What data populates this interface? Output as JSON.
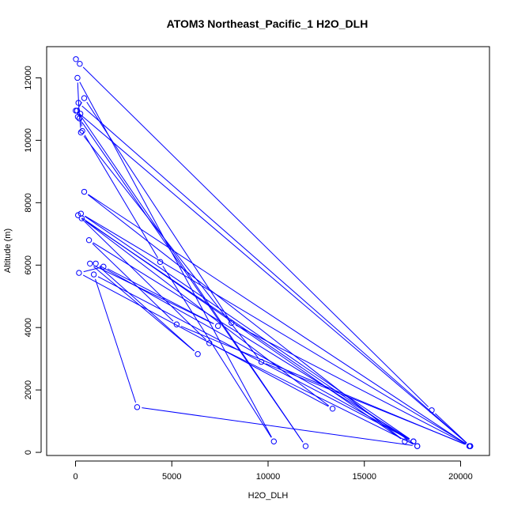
{
  "chart_data": {
    "type": "line",
    "title": "ATOM3 Northeast_Pacific_1 H2O_DLH",
    "xlabel": "H2O_DLH",
    "ylabel": "Altitude (m)",
    "xlim": [
      -1500,
      21500
    ],
    "ylim": [
      -100,
      13000
    ],
    "xticks": [
      0,
      5000,
      10000,
      15000,
      20000
    ],
    "yticks": [
      0,
      2000,
      4000,
      6000,
      8000,
      10000,
      12000
    ],
    "grid": false,
    "legend": "none",
    "series": [
      {
        "color": "#0000ff",
        "marker": "open-circle",
        "points": [
          [
            20,
            12600
          ],
          [
            220,
            12450
          ],
          [
            18500,
            1350
          ],
          [
            20500,
            200
          ],
          [
            10,
            10950
          ],
          [
            120,
            10750
          ],
          [
            250,
            10850
          ],
          [
            350,
            10300
          ],
          [
            4400,
            6100
          ],
          [
            10300,
            350
          ],
          [
            100,
            12000
          ],
          [
            200,
            10700
          ],
          [
            11950,
            200
          ],
          [
            80,
            10950
          ],
          [
            450,
            11350
          ],
          [
            8100,
            4150
          ],
          [
            20500,
            200
          ],
          [
            150,
            11200
          ],
          [
            280,
            10250
          ],
          [
            9650,
            2900
          ],
          [
            20500,
            200
          ],
          [
            280,
            7650
          ],
          [
            17550,
            350
          ],
          [
            700,
            6800
          ],
          [
            5250,
            4100
          ],
          [
            20450,
            200
          ],
          [
            450,
            8350
          ],
          [
            17100,
            350
          ],
          [
            130,
            7600
          ],
          [
            6950,
            3500
          ],
          [
            17750,
            200
          ],
          [
            320,
            7500
          ],
          [
            13350,
            1400
          ],
          [
            180,
            5750
          ],
          [
            1450,
            5950
          ],
          [
            7400,
            4050
          ],
          [
            750,
            6050
          ],
          [
            6350,
            3150
          ],
          [
            1050,
            6050
          ],
          [
            17550,
            350
          ],
          [
            950,
            5700
          ],
          [
            3200,
            1450
          ],
          [
            17750,
            200
          ]
        ]
      }
    ]
  }
}
